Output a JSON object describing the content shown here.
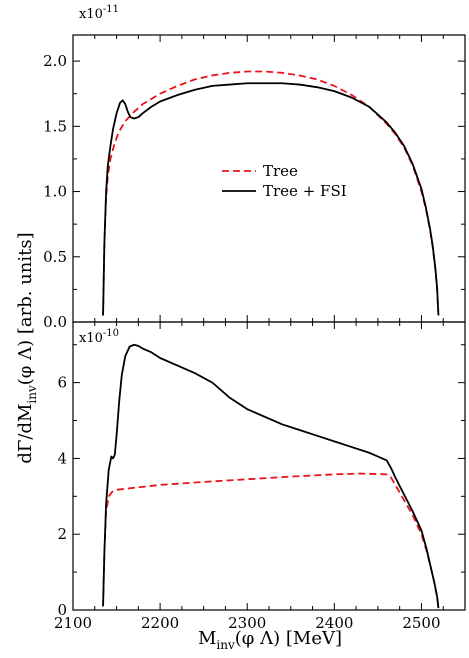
{
  "chart_data": [
    {
      "type": "line",
      "panel": "top",
      "scale_note": {
        "base": "x10",
        "exp": "-11"
      },
      "xlim": [
        2100,
        2550
      ],
      "ylim": [
        0,
        2.2
      ],
      "x_ticks": [
        2100,
        2200,
        2300,
        2400,
        2500
      ],
      "y_ticks": [
        "0.0",
        "0.5",
        "1.0",
        "1.5",
        "2.0"
      ],
      "y_tick_values": [
        0,
        0.5,
        1.0,
        1.5,
        2.0
      ],
      "legend": {
        "placement": "center",
        "entries": [
          "Tree",
          "Tree + FSI"
        ]
      },
      "series": [
        {
          "name": "Tree",
          "color": "#e8141c",
          "style": "dashed",
          "x": [
            2134.5,
            2136,
            2138,
            2140,
            2143,
            2147,
            2152,
            2160,
            2170,
            2180,
            2200,
            2220,
            2240,
            2260,
            2280,
            2300,
            2320,
            2340,
            2360,
            2380,
            2400,
            2420,
            2440,
            2460,
            2470,
            2480,
            2490,
            2500,
            2505,
            2510,
            2513,
            2516,
            2518,
            2519.5
          ],
          "y": [
            0.05,
            0.6,
            0.95,
            1.12,
            1.25,
            1.35,
            1.45,
            1.54,
            1.61,
            1.67,
            1.75,
            1.81,
            1.86,
            1.89,
            1.91,
            1.92,
            1.92,
            1.91,
            1.89,
            1.86,
            1.81,
            1.74,
            1.65,
            1.52,
            1.44,
            1.34,
            1.2,
            1.0,
            0.87,
            0.7,
            0.57,
            0.4,
            0.25,
            0.05
          ]
        },
        {
          "name": "Tree + FSI",
          "color": "#000000",
          "style": "solid",
          "x": [
            2134.5,
            2136,
            2138,
            2140,
            2143,
            2146,
            2150,
            2154,
            2157,
            2160,
            2163,
            2166,
            2170,
            2175,
            2180,
            2190,
            2200,
            2220,
            2240,
            2260,
            2280,
            2300,
            2320,
            2340,
            2360,
            2380,
            2400,
            2420,
            2440,
            2460,
            2470,
            2480,
            2490,
            2500,
            2505,
            2510,
            2513,
            2516,
            2518,
            2519.5
          ],
          "y": [
            0.05,
            0.6,
            1.0,
            1.2,
            1.35,
            1.48,
            1.6,
            1.68,
            1.7,
            1.67,
            1.61,
            1.57,
            1.56,
            1.57,
            1.6,
            1.65,
            1.69,
            1.74,
            1.78,
            1.81,
            1.82,
            1.83,
            1.83,
            1.83,
            1.82,
            1.8,
            1.77,
            1.72,
            1.65,
            1.53,
            1.45,
            1.35,
            1.21,
            1.02,
            0.88,
            0.71,
            0.58,
            0.41,
            0.26,
            0.05
          ]
        }
      ]
    },
    {
      "type": "line",
      "panel": "bottom",
      "scale_note": {
        "base": "x10",
        "exp": "-10"
      },
      "xlim": [
        2100,
        2550
      ],
      "ylim": [
        0,
        7.6
      ],
      "x_ticks": [
        2100,
        2200,
        2300,
        2400,
        2500
      ],
      "y_ticks": [
        "0",
        "2",
        "4",
        "6"
      ],
      "y_tick_values": [
        0,
        2,
        4,
        6
      ],
      "series": [
        {
          "name": "Tree",
          "color": "#e8141c",
          "style": "dashed",
          "x": [
            2134.5,
            2136,
            2138,
            2141,
            2145,
            2150,
            2160,
            2180,
            2200,
            2250,
            2300,
            2350,
            2400,
            2430,
            2460,
            2465,
            2470,
            2480,
            2490,
            2500,
            2506,
            2511,
            2515,
            2518,
            2519.5
          ],
          "y": [
            0.1,
            1.5,
            2.6,
            3.0,
            3.12,
            3.17,
            3.2,
            3.25,
            3.3,
            3.38,
            3.45,
            3.52,
            3.58,
            3.6,
            3.58,
            3.5,
            3.3,
            2.9,
            2.5,
            2.0,
            1.55,
            1.1,
            0.7,
            0.35,
            0.05
          ]
        },
        {
          "name": "Tree + FSI",
          "color": "#000000",
          "style": "solid",
          "x": [
            2134.5,
            2136,
            2138,
            2141,
            2144,
            2146,
            2148,
            2150,
            2153,
            2156,
            2160,
            2165,
            2170,
            2175,
            2180,
            2190,
            2200,
            2220,
            2240,
            2260,
            2280,
            2300,
            2320,
            2340,
            2360,
            2380,
            2400,
            2420,
            2440,
            2460,
            2465,
            2470,
            2480,
            2490,
            2500,
            2506,
            2511,
            2515,
            2518,
            2519.5
          ],
          "y": [
            0.1,
            1.5,
            2.8,
            3.7,
            4.05,
            4.0,
            4.1,
            4.6,
            5.5,
            6.2,
            6.7,
            6.95,
            7.0,
            6.97,
            6.9,
            6.8,
            6.65,
            6.45,
            6.25,
            6.0,
            5.6,
            5.3,
            5.1,
            4.9,
            4.75,
            4.6,
            4.45,
            4.3,
            4.15,
            3.95,
            3.75,
            3.5,
            3.05,
            2.6,
            2.1,
            1.6,
            1.1,
            0.7,
            0.35,
            0.05
          ]
        }
      ]
    }
  ],
  "axes": {
    "xlabel": {
      "main": "M",
      "sub": "inv",
      "rest": "(φ Λ) [MeV]"
    },
    "ylabel": {
      "main": "dΓ/dM",
      "sub": "inv",
      "rest": "(φ Λ) [arb. units]"
    }
  }
}
